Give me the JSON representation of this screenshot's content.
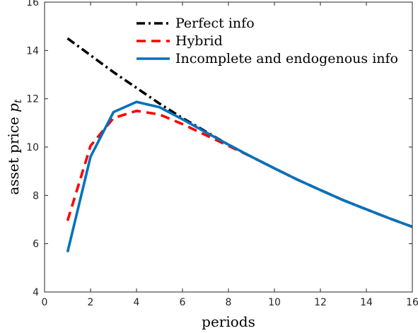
{
  "chart_data": {
    "type": "line",
    "xlabel": "periods",
    "ylabel_text": "asset price ",
    "ylabel_var": "p",
    "ylabel_sub": "t",
    "xlim": [
      0,
      16
    ],
    "ylim": [
      4,
      16
    ],
    "xticks": [
      0,
      2,
      4,
      6,
      8,
      10,
      12,
      14,
      16
    ],
    "yticks": [
      4,
      6,
      8,
      10,
      12,
      14,
      16
    ],
    "grid": false,
    "legend_position": "top",
    "series": [
      {
        "name": "Perfect info",
        "color": "#000000",
        "style": "dash-dot",
        "x": [
          1,
          2,
          3,
          4,
          5,
          6,
          7,
          8,
          9,
          10,
          11,
          12,
          13,
          14,
          15,
          16
        ],
        "y": [
          14.5,
          13.8,
          13.1,
          12.45,
          11.8,
          11.2,
          10.65,
          10.1,
          9.6,
          9.12,
          8.65,
          8.22,
          7.8,
          7.42,
          7.05,
          6.7
        ]
      },
      {
        "name": "Hybrid",
        "color": "#ff0000",
        "style": "dashed",
        "x": [
          1,
          2,
          3,
          4,
          5,
          6,
          7,
          8,
          9,
          10,
          11,
          12,
          13,
          14,
          15,
          16
        ],
        "y": [
          6.95,
          10.05,
          11.2,
          11.5,
          11.35,
          10.95,
          10.5,
          10.05,
          9.6,
          9.12,
          8.65,
          8.22,
          7.8,
          7.42,
          7.05,
          6.7
        ]
      },
      {
        "name": "Incomplete and endogenous info",
        "color": "#0072bd",
        "style": "solid",
        "x": [
          1,
          2,
          3,
          4,
          5,
          6,
          7,
          8,
          9,
          10,
          11,
          12,
          13,
          14,
          15,
          16
        ],
        "y": [
          5.65,
          9.6,
          11.45,
          11.87,
          11.65,
          11.15,
          10.62,
          10.1,
          9.6,
          9.12,
          8.65,
          8.22,
          7.8,
          7.42,
          7.05,
          6.7
        ]
      }
    ]
  }
}
